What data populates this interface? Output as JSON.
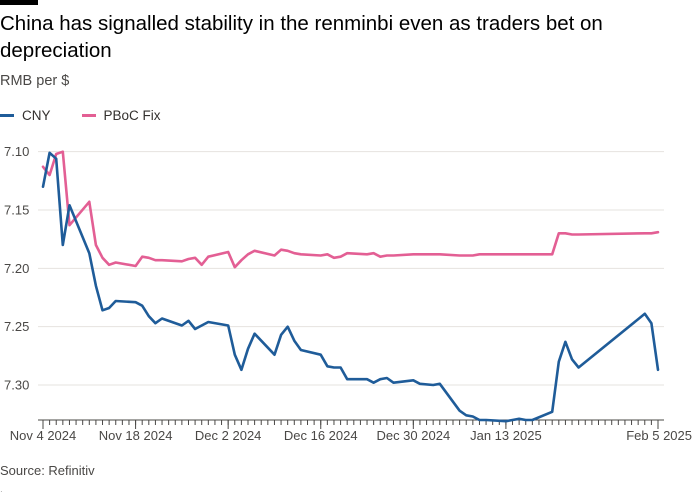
{
  "header": {
    "title": "China has signalled stability in the renminbi even as traders bet on depreciation",
    "subtitle": "RMB per $"
  },
  "footer": {
    "source": "Source: Refinitiv",
    "mark": "·"
  },
  "colors": {
    "cny": "#1f5c99",
    "pboc": "#e35f94",
    "grid": "#e6e3df",
    "axis": "#4a4846"
  },
  "chart_data": {
    "type": "line",
    "title": "China has signalled stability in the renminbi even as traders bet on depreciation",
    "ylabel": "RMB per $",
    "xlabel": "",
    "ylim": [
      7.33,
      7.09
    ],
    "y_inverted": true,
    "yticks": [
      7.1,
      7.15,
      7.2,
      7.25,
      7.3
    ],
    "ytick_labels": [
      "7.10",
      "7.15",
      "7.20",
      "7.25",
      "7.30"
    ],
    "x_range": [
      "2024-11-04",
      "2025-02-05"
    ],
    "xticks": [
      {
        "date": "2024-11-04",
        "label": "Nov 4 2024"
      },
      {
        "date": "2024-11-18",
        "label": "Nov 18 2024"
      },
      {
        "date": "2024-12-02",
        "label": "Dec 2 2024"
      },
      {
        "date": "2024-12-16",
        "label": "Dec 16 2024"
      },
      {
        "date": "2024-12-30",
        "label": "Dec 30 2024"
      },
      {
        "date": "2025-01-13",
        "label": "Jan 13 2025"
      },
      {
        "date": "2025-02-05",
        "label": "Feb 5 2025"
      }
    ],
    "legend_position": "top-left",
    "series": [
      {
        "name": "CNY",
        "color": "#1f5c99",
        "points": [
          [
            "2024-11-04",
            7.13
          ],
          [
            "2024-11-05",
            7.101
          ],
          [
            "2024-11-06",
            7.106
          ],
          [
            "2024-11-07",
            7.18
          ],
          [
            "2024-11-08",
            7.146
          ],
          [
            "2024-11-11",
            7.187
          ],
          [
            "2024-11-12",
            7.215
          ],
          [
            "2024-11-13",
            7.236
          ],
          [
            "2024-11-14",
            7.234
          ],
          [
            "2024-11-15",
            7.228
          ],
          [
            "2024-11-18",
            7.229
          ],
          [
            "2024-11-19",
            7.232
          ],
          [
            "2024-11-20",
            7.241
          ],
          [
            "2024-11-21",
            7.247
          ],
          [
            "2024-11-22",
            7.243
          ],
          [
            "2024-11-25",
            7.249
          ],
          [
            "2024-11-26",
            7.245
          ],
          [
            "2024-11-27",
            7.252
          ],
          [
            "2024-11-28",
            7.249
          ],
          [
            "2024-11-29",
            7.246
          ],
          [
            "2024-12-02",
            7.249
          ],
          [
            "2024-12-03",
            7.274
          ],
          [
            "2024-12-04",
            7.287
          ],
          [
            "2024-12-05",
            7.269
          ],
          [
            "2024-12-06",
            7.256
          ],
          [
            "2024-12-09",
            7.274
          ],
          [
            "2024-12-10",
            7.257
          ],
          [
            "2024-12-11",
            7.25
          ],
          [
            "2024-12-12",
            7.262
          ],
          [
            "2024-12-13",
            7.27
          ],
          [
            "2024-12-16",
            7.274
          ],
          [
            "2024-12-17",
            7.284
          ],
          [
            "2024-12-18",
            7.285
          ],
          [
            "2024-12-19",
            7.285
          ],
          [
            "2024-12-20",
            7.295
          ],
          [
            "2024-12-23",
            7.295
          ],
          [
            "2024-12-24",
            7.298
          ],
          [
            "2024-12-25",
            7.295
          ],
          [
            "2024-12-26",
            7.294
          ],
          [
            "2024-12-27",
            7.298
          ],
          [
            "2024-12-30",
            7.296
          ],
          [
            "2024-12-31",
            7.299
          ],
          [
            "2025-01-02",
            7.3
          ],
          [
            "2025-01-03",
            7.299
          ],
          [
            "2025-01-06",
            7.322
          ],
          [
            "2025-01-07",
            7.326
          ],
          [
            "2025-01-08",
            7.327
          ],
          [
            "2025-01-09",
            7.33
          ],
          [
            "2025-01-10",
            7.33
          ],
          [
            "2025-01-13",
            7.331
          ],
          [
            "2025-01-14",
            7.33
          ],
          [
            "2025-01-15",
            7.329
          ],
          [
            "2025-01-16",
            7.33
          ],
          [
            "2025-01-17",
            7.33
          ],
          [
            "2025-01-20",
            7.323
          ],
          [
            "2025-01-21",
            7.28
          ],
          [
            "2025-01-22",
            7.263
          ],
          [
            "2025-01-23",
            7.278
          ],
          [
            "2025-01-24",
            7.285
          ],
          [
            "2025-02-03",
            7.239
          ],
          [
            "2025-02-04",
            7.247
          ],
          [
            "2025-02-05",
            7.287
          ]
        ]
      },
      {
        "name": "PBoC Fix",
        "color": "#e35f94",
        "points": [
          [
            "2024-11-04",
            7.113
          ],
          [
            "2024-11-05",
            7.12
          ],
          [
            "2024-11-06",
            7.102
          ],
          [
            "2024-11-07",
            7.1
          ],
          [
            "2024-11-08",
            7.163
          ],
          [
            "2024-11-11",
            7.143
          ],
          [
            "2024-11-12",
            7.18
          ],
          [
            "2024-11-13",
            7.191
          ],
          [
            "2024-11-14",
            7.197
          ],
          [
            "2024-11-15",
            7.195
          ],
          [
            "2024-11-18",
            7.198
          ],
          [
            "2024-11-19",
            7.19
          ],
          [
            "2024-11-20",
            7.191
          ],
          [
            "2024-11-21",
            7.193
          ],
          [
            "2024-11-22",
            7.193
          ],
          [
            "2024-11-25",
            7.194
          ],
          [
            "2024-11-26",
            7.192
          ],
          [
            "2024-11-27",
            7.191
          ],
          [
            "2024-11-28",
            7.197
          ],
          [
            "2024-11-29",
            7.19
          ],
          [
            "2024-12-02",
            7.186
          ],
          [
            "2024-12-03",
            7.199
          ],
          [
            "2024-12-04",
            7.193
          ],
          [
            "2024-12-05",
            7.188
          ],
          [
            "2024-12-06",
            7.185
          ],
          [
            "2024-12-09",
            7.189
          ],
          [
            "2024-12-10",
            7.184
          ],
          [
            "2024-12-11",
            7.185
          ],
          [
            "2024-12-12",
            7.187
          ],
          [
            "2024-12-13",
            7.188
          ],
          [
            "2024-12-16",
            7.189
          ],
          [
            "2024-12-17",
            7.188
          ],
          [
            "2024-12-18",
            7.191
          ],
          [
            "2024-12-19",
            7.19
          ],
          [
            "2024-12-20",
            7.187
          ],
          [
            "2024-12-23",
            7.188
          ],
          [
            "2024-12-24",
            7.187
          ],
          [
            "2024-12-25",
            7.19
          ],
          [
            "2024-12-26",
            7.189
          ],
          [
            "2024-12-27",
            7.189
          ],
          [
            "2024-12-30",
            7.188
          ],
          [
            "2024-12-31",
            7.188
          ],
          [
            "2025-01-02",
            7.188
          ],
          [
            "2025-01-03",
            7.188
          ],
          [
            "2025-01-06",
            7.189
          ],
          [
            "2025-01-07",
            7.189
          ],
          [
            "2025-01-08",
            7.189
          ],
          [
            "2025-01-09",
            7.188
          ],
          [
            "2025-01-10",
            7.188
          ],
          [
            "2025-01-13",
            7.188
          ],
          [
            "2025-01-14",
            7.188
          ],
          [
            "2025-01-15",
            7.188
          ],
          [
            "2025-01-16",
            7.188
          ],
          [
            "2025-01-17",
            7.188
          ],
          [
            "2025-01-20",
            7.188
          ],
          [
            "2025-01-21",
            7.17
          ],
          [
            "2025-01-22",
            7.17
          ],
          [
            "2025-01-23",
            7.171
          ],
          [
            "2025-01-24",
            7.171
          ],
          [
            "2025-02-03",
            7.17
          ],
          [
            "2025-02-04",
            7.17
          ],
          [
            "2025-02-05",
            7.169
          ]
        ]
      }
    ]
  }
}
